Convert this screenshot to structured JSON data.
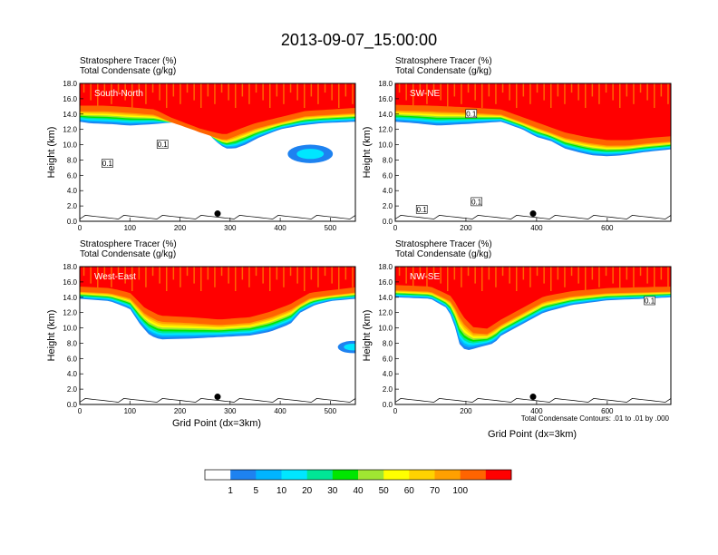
{
  "title": "2013-09-07_15:00:00",
  "subtitle_tracer": "Stratosphere Tracer",
  "subtitle_tracer_unit": "(%)",
  "subtitle_condensate": "Total Condensate",
  "subtitle_condensate_unit": "(g/kg)",
  "ylabel": "Height (km)",
  "xlabel": "Grid Point (dx=3km)",
  "contour_note": "Total Condensate Contours: .01 to .01 by .000",
  "colorbar": {
    "labels": [
      "1",
      "5",
      "10",
      "20",
      "30",
      "40",
      "50",
      "60",
      "70",
      "100"
    ],
    "colors": [
      "#ffffff",
      "#1e82f0",
      "#00b4ff",
      "#00e6ff",
      "#00e696",
      "#00e600",
      "#a0e632",
      "#ffff00",
      "#ffd200",
      "#ffa000",
      "#ff6400",
      "#ff0000"
    ]
  },
  "chart_data": [
    {
      "type": "heatmap",
      "name": "South-North",
      "label": "South-North",
      "xlim": [
        0,
        550
      ],
      "ylim": [
        0,
        18
      ],
      "xticks": [
        "0",
        "100",
        "200",
        "300",
        "400",
        "500"
      ],
      "yticks": [
        "0.0",
        "2.0",
        "4.0",
        "6.0",
        "8.0",
        "10.0",
        "12.0",
        "14.0",
        "16.0",
        "18.0"
      ],
      "marker": {
        "x": 275,
        "y": 1.0
      },
      "contour_labels": [
        {
          "text": "0.1",
          "x": 165,
          "y": 10.0
        },
        {
          "text": "0.1",
          "x": 55,
          "y": 7.5
        }
      ],
      "tracer_base_km": [
        [
          0,
          13.0
        ],
        [
          20,
          12.8
        ],
        [
          60,
          12.7
        ],
        [
          100,
          12.5
        ],
        [
          150,
          12.7
        ],
        [
          200,
          13.0
        ],
        [
          230,
          13.0
        ],
        [
          250,
          12.0
        ],
        [
          270,
          10.5
        ],
        [
          290,
          9.5
        ],
        [
          310,
          9.5
        ],
        [
          330,
          10.0
        ],
        [
          360,
          11.0
        ],
        [
          400,
          12.0
        ],
        [
          440,
          12.5
        ],
        [
          480,
          12.8
        ],
        [
          550,
          13.0
        ]
      ],
      "tracer_core_km": [
        [
          0,
          14.5
        ],
        [
          50,
          14.5
        ],
        [
          100,
          14.3
        ],
        [
          150,
          14.0
        ],
        [
          180,
          13.0
        ],
        [
          200,
          12.5
        ],
        [
          240,
          11.5
        ],
        [
          270,
          11.0
        ],
        [
          290,
          10.7
        ],
        [
          320,
          11.5
        ],
        [
          350,
          12.2
        ],
        [
          400,
          13.0
        ],
        [
          450,
          13.8
        ],
        [
          500,
          14.0
        ],
        [
          550,
          14.2
        ]
      ],
      "blob": {
        "cx": 460,
        "cy": 8.8,
        "rx": 45,
        "ry": 1.2
      }
    },
    {
      "type": "heatmap",
      "name": "SW-NE",
      "label": "SW-NE",
      "xlim": [
        0,
        780
      ],
      "ylim": [
        0,
        18
      ],
      "xticks": [
        "0",
        "200",
        "400",
        "600"
      ],
      "yticks": [
        "0.0",
        "2.0",
        "4.0",
        "6.0",
        "8.0",
        "10.0",
        "12.0",
        "14.0",
        "16.0",
        "18.0"
      ],
      "marker": {
        "x": 390,
        "y": 1.0
      },
      "contour_labels": [
        {
          "text": "0.1",
          "x": 215,
          "y": 14.0
        },
        {
          "text": "0.1",
          "x": 75,
          "y": 1.5
        },
        {
          "text": "0.1",
          "x": 230,
          "y": 2.5
        }
      ],
      "tracer_base_km": [
        [
          0,
          13.0
        ],
        [
          60,
          12.8
        ],
        [
          120,
          12.5
        ],
        [
          200,
          12.7
        ],
        [
          300,
          13.0
        ],
        [
          360,
          12.0
        ],
        [
          400,
          11.0
        ],
        [
          440,
          10.5
        ],
        [
          480,
          9.5
        ],
        [
          520,
          9.0
        ],
        [
          560,
          8.6
        ],
        [
          600,
          8.5
        ],
        [
          640,
          8.6
        ],
        [
          700,
          9.0
        ],
        [
          780,
          9.4
        ]
      ],
      "tracer_core_km": [
        [
          0,
          14.6
        ],
        [
          100,
          14.5
        ],
        [
          200,
          14.3
        ],
        [
          300,
          14.0
        ],
        [
          360,
          13.0
        ],
        [
          420,
          12.0
        ],
        [
          480,
          11.0
        ],
        [
          540,
          10.4
        ],
        [
          600,
          10.0
        ],
        [
          660,
          10.0
        ],
        [
          720,
          10.3
        ],
        [
          780,
          10.5
        ]
      ],
      "blob": null
    },
    {
      "type": "heatmap",
      "name": "West-East",
      "label": "West-East",
      "xlim": [
        0,
        550
      ],
      "ylim": [
        0,
        18
      ],
      "xticks": [
        "0",
        "100",
        "200",
        "300",
        "400",
        "500"
      ],
      "yticks": [
        "0.0",
        "2.0",
        "4.0",
        "6.0",
        "8.0",
        "10.0",
        "12.0",
        "14.0",
        "16.0",
        "18.0"
      ],
      "marker": {
        "x": 275,
        "y": 1.0
      },
      "contour_labels": [],
      "tracer_base_km": [
        [
          0,
          13.8
        ],
        [
          60,
          13.5
        ],
        [
          100,
          12.5
        ],
        [
          120,
          10.5
        ],
        [
          140,
          9.0
        ],
        [
          160,
          8.5
        ],
        [
          220,
          8.6
        ],
        [
          280,
          8.8
        ],
        [
          340,
          9.0
        ],
        [
          380,
          9.5
        ],
        [
          420,
          10.5
        ],
        [
          440,
          12.0
        ],
        [
          470,
          13.0
        ],
        [
          500,
          13.5
        ],
        [
          550,
          13.8
        ]
      ],
      "tracer_core_km": [
        [
          0,
          14.8
        ],
        [
          60,
          14.6
        ],
        [
          100,
          14.0
        ],
        [
          130,
          12.0
        ],
        [
          160,
          11.0
        ],
        [
          220,
          10.8
        ],
        [
          280,
          10.5
        ],
        [
          340,
          10.8
        ],
        [
          380,
          11.5
        ],
        [
          420,
          12.5
        ],
        [
          460,
          14.0
        ],
        [
          550,
          14.7
        ]
      ],
      "blob": {
        "cx": 545,
        "cy": 7.5,
        "rx": 30,
        "ry": 0.8
      }
    },
    {
      "type": "heatmap",
      "name": "NW-SE",
      "label": "NW-SE",
      "xlim": [
        0,
        780
      ],
      "ylim": [
        0,
        18
      ],
      "xticks": [
        "0",
        "200",
        "400",
        "600"
      ],
      "yticks": [
        "0.0",
        "2.0",
        "4.0",
        "6.0",
        "8.0",
        "10.0",
        "12.0",
        "14.0",
        "16.0",
        "18.0"
      ],
      "marker": {
        "x": 390,
        "y": 1.0
      },
      "contour_labels": [
        {
          "text": "0.1",
          "x": 720,
          "y": 13.5
        }
      ],
      "tracer_base_km": [
        [
          0,
          14.0
        ],
        [
          100,
          13.8
        ],
        [
          150,
          12.5
        ],
        [
          170,
          10.0
        ],
        [
          180,
          8.0
        ],
        [
          200,
          7.0
        ],
        [
          240,
          7.5
        ],
        [
          280,
          8.0
        ],
        [
          300,
          9.0
        ],
        [
          360,
          10.5
        ],
        [
          420,
          12.0
        ],
        [
          500,
          13.0
        ],
        [
          600,
          13.6
        ],
        [
          700,
          13.8
        ],
        [
          780,
          14.0
        ]
      ],
      "tracer_core_km": [
        [
          0,
          15.0
        ],
        [
          100,
          14.8
        ],
        [
          160,
          13.5
        ],
        [
          190,
          11.0
        ],
        [
          220,
          9.5
        ],
        [
          260,
          9.3
        ],
        [
          300,
          10.5
        ],
        [
          360,
          12.0
        ],
        [
          420,
          13.5
        ],
        [
          500,
          14.2
        ],
        [
          600,
          14.6
        ],
        [
          780,
          14.8
        ]
      ],
      "blob": null
    }
  ]
}
